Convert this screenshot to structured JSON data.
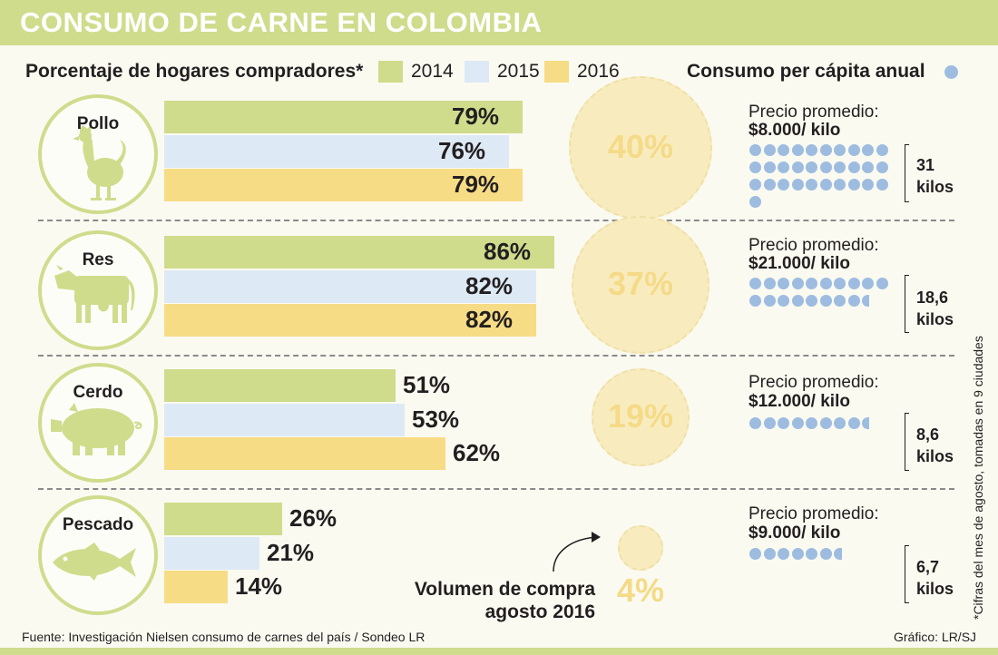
{
  "title": "CONSUMO DE CARNE EN COLOMBIA",
  "header_left": "Porcentaje de hogares compradores*",
  "header_right": "Consumo per cápita anual",
  "legend": [
    {
      "label": "2014",
      "color": "#cfdc8c"
    },
    {
      "label": "2015",
      "color": "#dde9f5"
    },
    {
      "label": "2016",
      "color": "#f7dc86"
    }
  ],
  "dot_color": "#9dbce0",
  "chart_data": {
    "type": "bar",
    "title": "Porcentaje de hogares compradores*",
    "series_years": [
      "2014",
      "2015",
      "2016"
    ],
    "categories": [
      "Pollo",
      "Res",
      "Cerdo",
      "Pescado"
    ],
    "series": [
      {
        "name": "2014",
        "values": [
          79,
          86,
          51,
          26
        ]
      },
      {
        "name": "2015",
        "values": [
          76,
          82,
          53,
          21
        ]
      },
      {
        "name": "2016",
        "values": [
          79,
          82,
          62,
          14
        ]
      }
    ],
    "value_labels": [
      [
        "79%",
        "76%",
        "79%"
      ],
      [
        "86%",
        "82%",
        "82%"
      ],
      [
        "51%",
        "53%",
        "62%"
      ],
      [
        "26%",
        "21%",
        "14%"
      ]
    ],
    "volume_share": [
      40,
      37,
      19,
      4
    ],
    "volume_share_labels": [
      "40%",
      "37%",
      "19%",
      "4%"
    ],
    "per_capita_kilos": [
      31,
      18.6,
      8.6,
      6.7
    ]
  },
  "categories_info": [
    {
      "name": "Pollo",
      "price_label": "Precio promedio:",
      "price": "$8.000/ kilo",
      "kilos_line1": "31",
      "kilos_line2": "kilos"
    },
    {
      "name": "Res",
      "price_label": "Precio promedio:",
      "price": "$21.000/ kilo",
      "kilos_line1": "18,6",
      "kilos_line2": "kilos"
    },
    {
      "name": "Cerdo",
      "price_label": "Precio promedio:",
      "price": "$12.000/ kilo",
      "kilos_line1": "8,6",
      "kilos_line2": "kilos"
    },
    {
      "name": "Pescado",
      "price_label": "Precio promedio:",
      "price": "$9.000/ kilo",
      "kilos_line1": "6,7",
      "kilos_line2": "kilos"
    }
  ],
  "volume_note_line1": "Volumen de compra",
  "volume_note_line2": "agosto 2016",
  "side_note": "*Cifras del mes de agosto, tomadas en 9 ciudades",
  "source": "Fuente: Investigación Nielsen consumo de carnes del país / Sondeo LR",
  "credit": "Gráfico: LR/SJ"
}
